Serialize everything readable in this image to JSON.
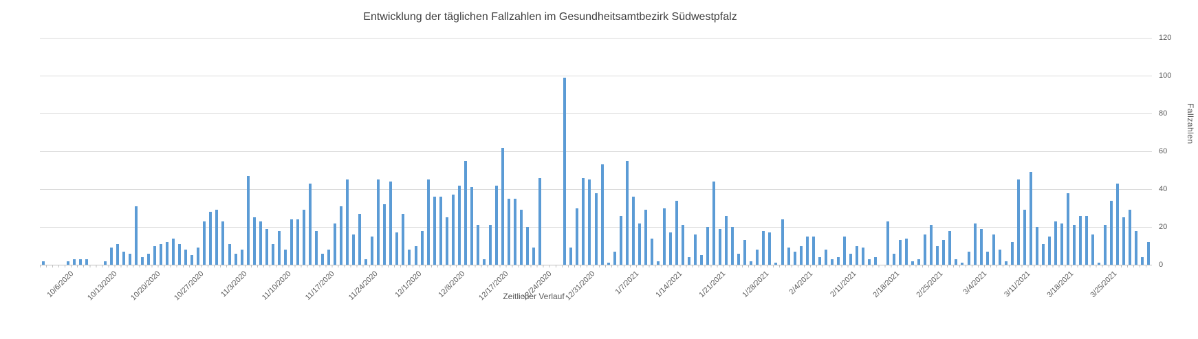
{
  "title": "Entwicklung der täglichen Fallzahlen im Gesundheitsamtbezirk Südwestpfalz",
  "axes": {
    "x_title": "Zeitlicher Verlauf",
    "y_title": "Fallzahlen",
    "y_ticks": [
      0,
      20,
      40,
      60,
      80,
      100,
      120
    ]
  },
  "colors": {
    "bar": "#5b9bd5",
    "gridline": "#d9d9d9",
    "axis_line": "#bfbfbf",
    "title_text": "#404040",
    "axis_text": "#595959"
  },
  "chart_data": {
    "type": "bar",
    "title": "Entwicklung der täglichen Fallzahlen im Gesundheitsamtbezirk Südwestpfalz",
    "xlabel": "Zeitlicher Verlauf",
    "ylabel": "Fallzahlen",
    "ylim": [
      0,
      120
    ],
    "y_ticks": [
      0,
      20,
      40,
      60,
      80,
      100,
      120
    ],
    "grid": true,
    "legend": false,
    "x_tick_labels": [
      "10/6/2020",
      "10/13/2020",
      "10/20/2020",
      "10/27/2020",
      "11/3/2020",
      "11/10/2020",
      "11/17/2020",
      "11/24/2020",
      "12/1/2020",
      "12/8/2020",
      "12/17/2020",
      "12/24/2020",
      "12/31/2020",
      "1/7/2021",
      "1/14/2021",
      "1/21/2021",
      "1/28/2021",
      "2/4/2021",
      "2/11/2021",
      "2/18/2021",
      "2/25/2021",
      "3/4/2021",
      "3/11/2021",
      "3/18/2021",
      "3/25/2021"
    ],
    "x_tick_positions": [
      4,
      11,
      18,
      25,
      32,
      39,
      46,
      53,
      60,
      67,
      74,
      81,
      88,
      95,
      102,
      109,
      116,
      123,
      130,
      137,
      144,
      151,
      158,
      165,
      172
    ],
    "values": [
      2,
      0,
      0,
      0,
      2,
      3,
      3,
      3,
      0,
      0,
      2,
      9,
      11,
      7,
      6,
      31,
      4,
      6,
      10,
      11,
      12,
      14,
      11,
      8,
      5,
      9,
      23,
      28,
      29,
      23,
      11,
      6,
      8,
      47,
      25,
      23,
      19,
      11,
      18,
      8,
      24,
      24,
      29,
      43,
      18,
      6,
      8,
      22,
      31,
      45,
      16,
      27,
      3,
      15,
      45,
      32,
      44,
      17,
      27,
      8,
      10,
      18,
      45,
      36,
      36,
      25,
      37,
      42,
      55,
      41,
      21,
      3,
      21,
      42,
      62,
      35,
      35,
      29,
      20,
      9,
      46,
      0,
      0,
      0,
      99,
      9,
      30,
      46,
      45,
      38,
      53,
      1,
      7,
      26,
      55,
      36,
      22,
      29,
      14,
      2,
      30,
      17,
      34,
      21,
      4,
      16,
      5,
      20,
      44,
      19,
      26,
      20,
      6,
      13,
      2,
      8,
      18,
      17,
      1,
      24,
      9,
      7,
      10,
      15,
      15,
      4,
      8,
      3,
      4,
      15,
      6,
      10,
      9,
      3,
      4,
      0,
      23,
      6,
      13,
      14,
      2,
      3,
      16,
      21,
      10,
      13,
      18,
      3,
      1,
      7,
      22,
      19,
      7,
      16,
      8,
      2,
      12,
      45,
      29,
      49,
      20,
      11,
      15,
      23,
      22,
      38,
      21,
      26,
      26,
      16,
      1,
      21,
      34,
      43,
      25,
      29,
      18,
      4,
      12
    ]
  }
}
